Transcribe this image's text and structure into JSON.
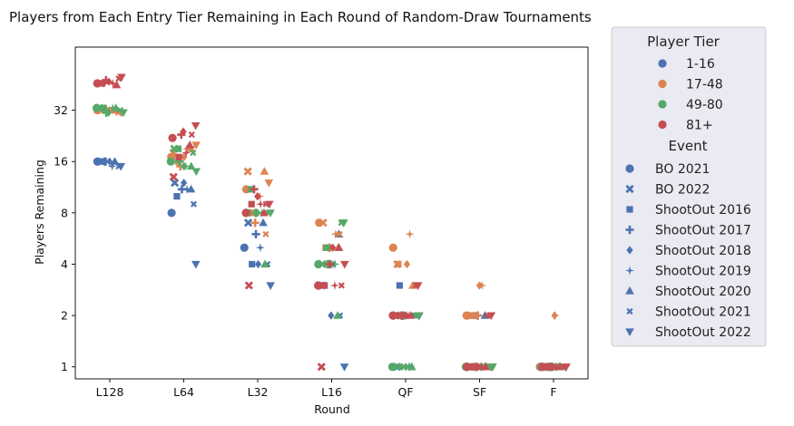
{
  "chart_data": {
    "type": "scatter",
    "title": "Players from Each Entry Tier Remaining in Each Round of Random-Draw Tournaments",
    "xlabel": "Round",
    "ylabel": "Players Remaining",
    "categories": [
      "L128",
      "L64",
      "L32",
      "L16",
      "QF",
      "SF",
      "F"
    ],
    "y_scale": "log2",
    "yticks": [
      1,
      2,
      4,
      8,
      16,
      32
    ],
    "ytick_labels": [
      "1",
      "2",
      "4",
      "8",
      "16",
      "32"
    ],
    "ylim": [
      0.85,
      75
    ],
    "grid": false,
    "legend_placement": "outside right",
    "hue_legend": {
      "title": "Player Tier",
      "entries": [
        {
          "label": "1-16",
          "color": "#4c72b0"
        },
        {
          "label": "17-48",
          "color": "#dd8452"
        },
        {
          "label": "49-80",
          "color": "#55a868"
        },
        {
          "label": "81+",
          "color": "#c44e52"
        }
      ]
    },
    "style_legend": {
      "title": "Event",
      "entries": [
        {
          "label": "BO 2021",
          "marker": "circle"
        },
        {
          "label": "BO 2022",
          "marker": "x"
        },
        {
          "label": "ShootOut 2016",
          "marker": "square"
        },
        {
          "label": "ShootOut 2017",
          "marker": "plus"
        },
        {
          "label": "ShootOut 2018",
          "marker": "diamond"
        },
        {
          "label": "ShootOut 2019",
          "marker": "star"
        },
        {
          "label": "ShootOut 2020",
          "marker": "triangle-up"
        },
        {
          "label": "ShootOut 2021",
          "marker": "x-small"
        },
        {
          "label": "ShootOut 2022",
          "marker": "triangle-down"
        }
      ]
    },
    "series": [
      {
        "tier": "1-16",
        "event": "BO 2021",
        "values": [
          16,
          8,
          5,
          3,
          2,
          1,
          1
        ]
      },
      {
        "tier": "1-16",
        "event": "BO 2022",
        "values": [
          16,
          12,
          7,
          3,
          1,
          1,
          1
        ]
      },
      {
        "tier": "1-16",
        "event": "ShootOut 2016",
        "values": [
          16,
          10,
          4,
          3,
          3,
          2,
          1
        ]
      },
      {
        "tier": "1-16",
        "event": "ShootOut 2017",
        "values": [
          16,
          11,
          6,
          4,
          2,
          2,
          1
        ]
      },
      {
        "tier": "1-16",
        "event": "ShootOut 2018",
        "values": [
          16,
          12,
          4,
          2,
          2,
          1,
          1
        ]
      },
      {
        "tier": "1-16",
        "event": "ShootOut 2019",
        "values": [
          15,
          11,
          5,
          4,
          1,
          1,
          1
        ]
      },
      {
        "tier": "1-16",
        "event": "ShootOut 2020",
        "values": [
          16,
          11,
          7,
          6,
          1,
          2,
          1
        ]
      },
      {
        "tier": "1-16",
        "event": "ShootOut 2021",
        "values": [
          15,
          9,
          4,
          2,
          2,
          1,
          1
        ]
      },
      {
        "tier": "1-16",
        "event": "ShootOut 2022",
        "values": [
          15,
          4,
          3,
          1,
          2,
          1,
          1
        ]
      },
      {
        "tier": "17-48",
        "event": "BO 2021",
        "values": [
          32,
          17,
          11,
          7,
          5,
          2,
          1
        ]
      },
      {
        "tier": "17-48",
        "event": "BO 2022",
        "values": [
          32,
          18,
          14,
          7,
          4,
          2,
          1
        ]
      },
      {
        "tier": "17-48",
        "event": "ShootOut 2016",
        "values": [
          32,
          16,
          8,
          5,
          4,
          2,
          1
        ]
      },
      {
        "tier": "17-48",
        "event": "ShootOut 2017",
        "values": [
          32,
          15,
          7,
          5,
          2,
          2,
          1
        ]
      },
      {
        "tier": "17-48",
        "event": "ShootOut 2018",
        "values": [
          32,
          17,
          10,
          5,
          4,
          3,
          2
        ]
      },
      {
        "tier": "17-48",
        "event": "ShootOut 2019",
        "values": [
          32,
          19,
          10,
          6,
          6,
          3,
          2
        ]
      },
      {
        "tier": "17-48",
        "event": "ShootOut 2020",
        "values": [
          32,
          19,
          14,
          5,
          3,
          1,
          1
        ]
      },
      {
        "tier": "17-48",
        "event": "ShootOut 2021",
        "values": [
          31,
          19,
          6,
          6,
          3,
          1,
          1
        ]
      },
      {
        "tier": "17-48",
        "event": "ShootOut 2022",
        "values": [
          31,
          20,
          12,
          7,
          3,
          1,
          1
        ]
      },
      {
        "tier": "49-80",
        "event": "BO 2021",
        "values": [
          33,
          16,
          8,
          4,
          1,
          1,
          1
        ]
      },
      {
        "tier": "49-80",
        "event": "BO 2022",
        "values": [
          33,
          19,
          8,
          4,
          2,
          1,
          1
        ]
      },
      {
        "tier": "49-80",
        "event": "ShootOut 2016",
        "values": [
          33,
          19,
          11,
          5,
          1,
          1,
          1
        ]
      },
      {
        "tier": "49-80",
        "event": "ShootOut 2017",
        "values": [
          31,
          16,
          8,
          4,
          2,
          1,
          1
        ]
      },
      {
        "tier": "49-80",
        "event": "ShootOut 2018",
        "values": [
          31,
          15,
          8,
          4,
          1,
          1,
          1
        ]
      },
      {
        "tier": "49-80",
        "event": "ShootOut 2019",
        "values": [
          33,
          15,
          8,
          4,
          1,
          1,
          1
        ]
      },
      {
        "tier": "49-80",
        "event": "ShootOut 2020",
        "values": [
          33,
          15,
          4,
          2,
          1,
          1,
          1
        ]
      },
      {
        "tier": "49-80",
        "event": "ShootOut 2021",
        "values": [
          32,
          18,
          8,
          7,
          2,
          1,
          1
        ]
      },
      {
        "tier": "49-80",
        "event": "ShootOut 2022",
        "values": [
          31,
          14,
          8,
          7,
          2,
          1,
          1
        ]
      },
      {
        "tier": "81+",
        "event": "BO 2021",
        "values": [
          46,
          22,
          8,
          3,
          2,
          1,
          1
        ]
      },
      {
        "tier": "81+",
        "event": "BO 2022",
        "values": [
          46,
          13,
          3,
          1,
          2,
          1,
          1
        ]
      },
      {
        "tier": "81+",
        "event": "ShootOut 2016",
        "values": [
          46,
          17,
          9,
          3,
          2,
          1,
          1
        ]
      },
      {
        "tier": "81+",
        "event": "ShootOut 2017",
        "values": [
          48,
          23,
          11,
          4,
          2,
          1,
          1
        ]
      },
      {
        "tier": "81+",
        "event": "ShootOut 2018",
        "values": [
          47,
          24,
          10,
          5,
          2,
          1,
          1
        ]
      },
      {
        "tier": "81+",
        "event": "ShootOut 2019",
        "values": [
          46,
          18,
          9,
          3,
          2,
          1,
          1
        ]
      },
      {
        "tier": "81+",
        "event": "ShootOut 2020",
        "values": [
          45,
          20,
          8,
          5,
          2,
          1,
          1
        ]
      },
      {
        "tier": "81+",
        "event": "ShootOut 2021",
        "values": [
          49,
          23,
          9,
          3,
          3,
          2,
          1
        ]
      },
      {
        "tier": "81+",
        "event": "ShootOut 2022",
        "values": [
          50,
          26,
          9,
          4,
          3,
          2,
          1
        ]
      }
    ]
  }
}
